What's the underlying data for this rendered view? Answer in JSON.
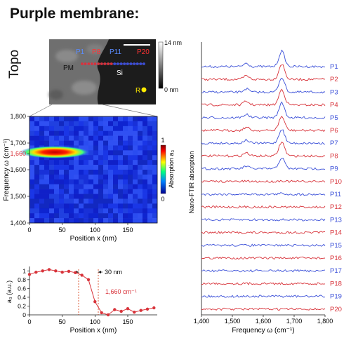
{
  "figure": {
    "title": "Purple membrane:",
    "topo_label": "Topo",
    "topo": {
      "regions": [
        "PM",
        "Si"
      ],
      "points": [
        "P1",
        "P8",
        "P11",
        "P20"
      ],
      "ref_label": "R",
      "scale_max": "14 nm",
      "scale_min": "0 nm"
    },
    "heatmap": {
      "ylabel": "Frequency ω (cm⁻¹)",
      "xlabel": "Position x (nm)",
      "y_ticks": [
        "1,800",
        "1,700",
        "1,660",
        "1,600",
        "1,500",
        "1,400"
      ],
      "x_ticks": [
        "0",
        "50",
        "100",
        "150"
      ],
      "colorbar_label": "Absorption a₃",
      "colorbar_ticks": [
        "1",
        "0"
      ]
    },
    "profile": {
      "ylabel": "a₃ (a.u.)",
      "xlabel": "Position x (nm)",
      "y_ticks": [
        "1",
        "0.8",
        "0.6",
        "0.4",
        "0.2",
        "0"
      ],
      "x_ticks": [
        "0",
        "50",
        "100",
        "150"
      ],
      "annotation": "30 nm",
      "freq_label": "1,660 cm⁻¹"
    },
    "spectra": {
      "ylabel": "Nano-FTIR absorption",
      "xlabel": "Frequency ω (cm⁻¹)",
      "x_ticks": [
        "1,400",
        "1,500",
        "1,600",
        "1,700",
        "1,800"
      ],
      "labels": [
        "P1",
        "P2",
        "P3",
        "P4",
        "P5",
        "P6",
        "P7",
        "P8",
        "P9",
        "P10",
        "P11",
        "P12",
        "P13",
        "P14",
        "P15",
        "P16",
        "P17",
        "P18",
        "P19",
        "P20"
      ],
      "colors": {
        "blue": "#3a4fd8",
        "red": "#d8333a"
      }
    }
  },
  "chart_data": [
    {
      "type": "heatmap",
      "xlabel": "Position x (nm)",
      "ylabel": "Frequency ω (cm⁻¹)",
      "xlim": [
        0,
        195
      ],
      "ylim": [
        1400,
        1800
      ],
      "colorbar": "Absorption a₃",
      "band_center": 1660,
      "band_extent_x": [
        0,
        85
      ]
    },
    {
      "type": "scatter",
      "xlabel": "Position x (nm)",
      "ylabel": "a₃ (a.u.)",
      "xlim": [
        0,
        195
      ],
      "ylim": [
        0,
        1.1
      ],
      "x": [
        0,
        10,
        20,
        30,
        40,
        50,
        60,
        70,
        80,
        90,
        100,
        110,
        120,
        130,
        140,
        150,
        160,
        170,
        180,
        190
      ],
      "values": [
        0.92,
        0.97,
        1.0,
        1.03,
        1.0,
        0.97,
        0.99,
        0.96,
        0.9,
        0.8,
        0.3,
        0.05,
        0.0,
        0.12,
        0.08,
        0.14,
        0.06,
        0.1,
        0.13,
        0.16
      ],
      "annotation": "30 nm",
      "series_label": "1,660 cm⁻¹"
    },
    {
      "type": "line",
      "xlabel": "Frequency ω (cm⁻¹)",
      "ylabel": "Nano-FTIR absorption",
      "xlim": [
        1400,
        1800
      ],
      "peak_position": 1660,
      "series": [
        {
          "name": "P1",
          "peak": 1.0
        },
        {
          "name": "P2",
          "peak": 1.0
        },
        {
          "name": "P3",
          "peak": 0.95
        },
        {
          "name": "P4",
          "peak": 1.0
        },
        {
          "name": "P5",
          "peak": 0.95
        },
        {
          "name": "P6",
          "peak": 0.9
        },
        {
          "name": "P7",
          "peak": 0.9
        },
        {
          "name": "P8",
          "peak": 0.9
        },
        {
          "name": "P9",
          "peak": 0.7
        },
        {
          "name": "P10",
          "peak": 0.05
        },
        {
          "name": "P11",
          "peak": 0.05
        },
        {
          "name": "P12",
          "peak": 0.0
        },
        {
          "name": "P13",
          "peak": 0.0
        },
        {
          "name": "P14",
          "peak": 0.0
        },
        {
          "name": "P15",
          "peak": 0.0
        },
        {
          "name": "P16",
          "peak": 0.0
        },
        {
          "name": "P17",
          "peak": 0.0
        },
        {
          "name": "P18",
          "peak": 0.0
        },
        {
          "name": "P19",
          "peak": 0.0
        },
        {
          "name": "P20",
          "peak": 0.0
        }
      ]
    }
  ]
}
